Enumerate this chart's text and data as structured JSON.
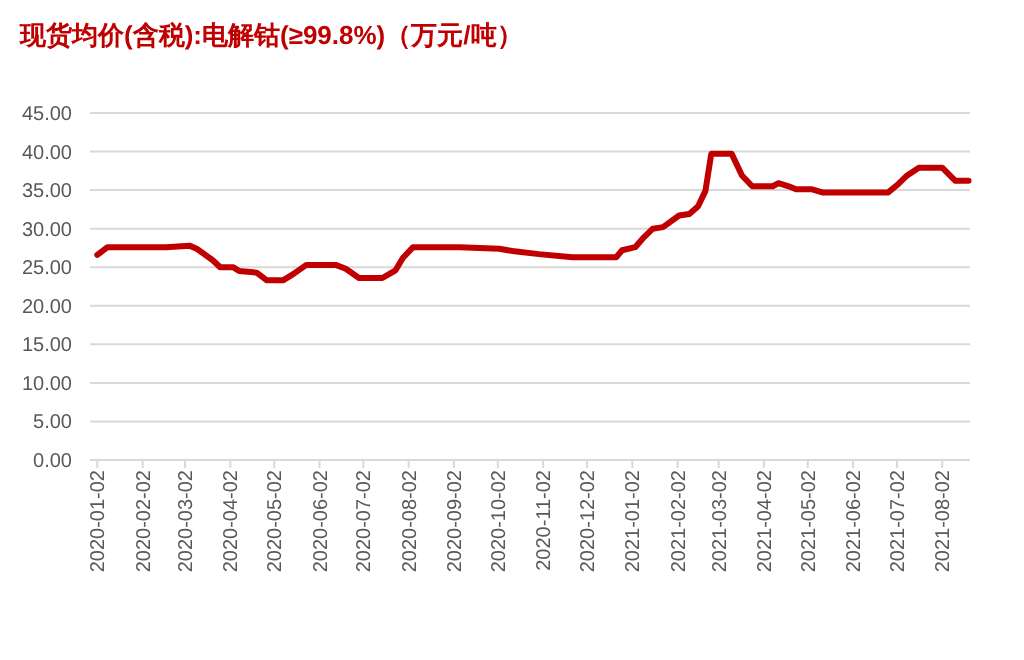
{
  "chart_data": {
    "type": "line",
    "title": "现货均价(含税):电解钴(≥99.8%)（万元/吨）",
    "x": [
      "2020-01-02",
      "2020-01-09",
      "2020-02-18",
      "2020-03-05",
      "2020-03-10",
      "2020-03-21",
      "2020-03-26",
      "2020-04-04",
      "2020-04-08",
      "2020-04-20",
      "2020-04-27",
      "2020-05-08",
      "2020-05-15",
      "2020-05-24",
      "2020-06-13",
      "2020-06-20",
      "2020-06-29",
      "2020-07-15",
      "2020-07-24",
      "2020-07-29",
      "2020-08-05",
      "2020-09-06",
      "2020-10-03",
      "2020-10-12",
      "2020-10-30",
      "2020-11-22",
      "2020-12-22",
      "2020-12-26",
      "2021-01-04",
      "2021-01-09",
      "2021-01-16",
      "2021-01-23",
      "2021-02-03",
      "2021-02-10",
      "2021-02-16",
      "2021-02-21",
      "2021-02-25",
      "2021-03-11",
      "2021-03-18",
      "2021-03-25",
      "2021-04-08",
      "2021-04-12",
      "2021-04-19",
      "2021-04-24",
      "2021-05-05",
      "2021-05-12",
      "2021-06-26",
      "2021-07-03",
      "2021-07-09",
      "2021-07-17",
      "2021-08-02",
      "2021-08-11",
      "2021-08-20"
    ],
    "series": [
      {
        "color": "#c00000",
        "values": [
          26.6,
          27.6,
          27.6,
          27.8,
          27.4,
          25.9,
          25.0,
          25.0,
          24.5,
          24.3,
          23.3,
          23.3,
          24.1,
          25.3,
          25.3,
          24.8,
          23.6,
          23.6,
          24.6,
          26.2,
          27.6,
          27.6,
          27.4,
          27.1,
          26.7,
          26.3,
          26.3,
          27.2,
          27.6,
          28.7,
          30.0,
          30.2,
          31.7,
          31.9,
          32.9,
          34.9,
          39.7,
          39.7,
          36.9,
          35.5,
          35.5,
          35.9,
          35.5,
          35.1,
          35.1,
          34.7,
          34.7,
          35.8,
          36.9,
          37.9,
          37.9,
          36.2,
          36.2
        ]
      }
    ],
    "xlim": [
      "2019-12-28",
      "2021-08-21"
    ],
    "xticks": [
      "2020-01-02",
      "2020-02-02",
      "2020-03-02",
      "2020-04-02",
      "2020-05-02",
      "2020-06-02",
      "2020-07-02",
      "2020-08-02",
      "2020-09-02",
      "2020-10-02",
      "2020-11-02",
      "2020-12-02",
      "2021-01-02",
      "2021-02-02",
      "2021-03-02",
      "2021-04-02",
      "2021-05-02",
      "2021-06-02",
      "2021-07-02",
      "2021-08-02"
    ],
    "ylim": [
      0,
      45
    ],
    "yticks": [
      {
        "value": 0,
        "label": "0.00"
      },
      {
        "value": 5,
        "label": "5.00"
      },
      {
        "value": 10,
        "label": "10.00"
      },
      {
        "value": 15,
        "label": "15.00"
      },
      {
        "value": 20,
        "label": "20.00"
      },
      {
        "value": 25,
        "label": "25.00"
      },
      {
        "value": 30,
        "label": "30.00"
      },
      {
        "value": 35,
        "label": "35.00"
      },
      {
        "value": 40,
        "label": "40.00"
      },
      {
        "value": 45,
        "label": "45.00"
      }
    ],
    "grid": "y",
    "marker": "none",
    "line_style": "solid"
  }
}
